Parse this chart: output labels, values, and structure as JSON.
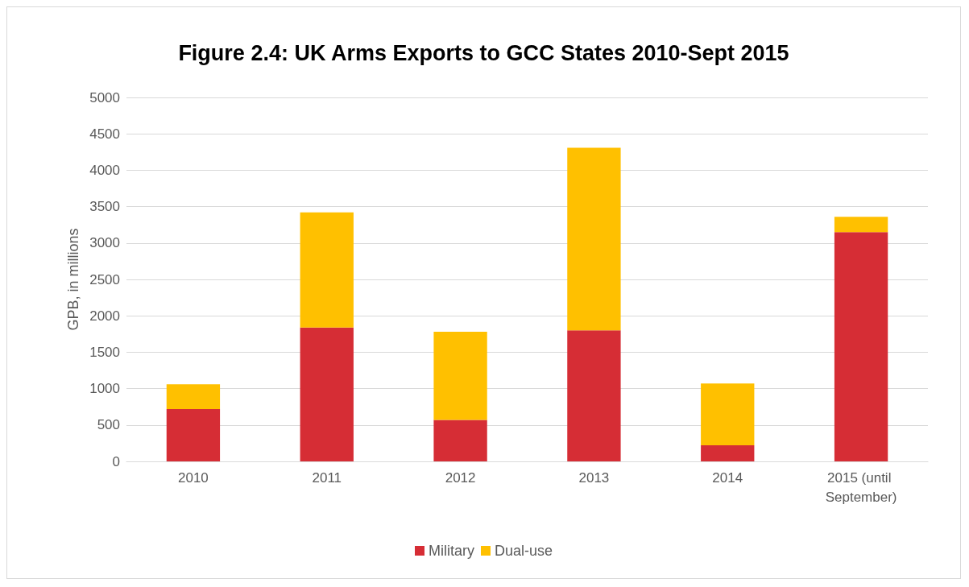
{
  "chart_data": {
    "type": "bar",
    "title": "Figure 2.4: UK Arms Exports to GCC States 2010-Sept 2015",
    "ylabel": "GPB, in millions",
    "categories": [
      "2010",
      "2011",
      "2012",
      "2013",
      "2014",
      "2015 (until September)"
    ],
    "series": [
      {
        "name": "Military",
        "color": "#d62d35",
        "values": [
          720,
          1840,
          570,
          1800,
          220,
          3150
        ]
      },
      {
        "name": "Dual-use",
        "color": "#ffc000",
        "values": [
          340,
          1580,
          1210,
          2510,
          850,
          210
        ]
      }
    ],
    "stacked": true,
    "ylim": [
      0,
      5000
    ],
    "yticks": [
      0,
      500,
      1000,
      1500,
      2000,
      2500,
      3000,
      3500,
      4000,
      4500,
      5000
    ],
    "grid": "y",
    "legend": "bottom"
  }
}
